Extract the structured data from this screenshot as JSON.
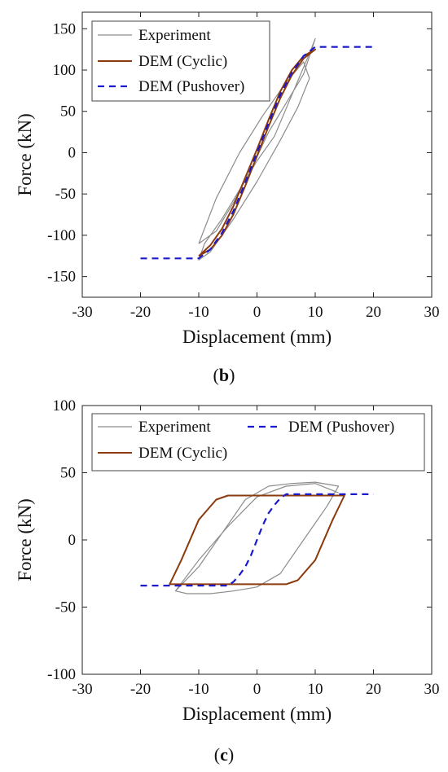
{
  "charts": [
    {
      "caption_letter": "b",
      "chart_data": {
        "type": "line",
        "xlabel": "Displacement (mm)",
        "ylabel": "Force (kN)",
        "xlim": [
          -30,
          30
        ],
        "ylim": [
          -175,
          170
        ],
        "xticks": [
          -30,
          -20,
          -10,
          0,
          10,
          20,
          30
        ],
        "yticks": [
          -150,
          -100,
          -50,
          0,
          50,
          100,
          150
        ],
        "legend_position": "top-left",
        "legend": [
          "Experiment",
          "DEM (Cyclic)",
          "DEM (Pushover)"
        ],
        "colors": {
          "Experiment": "#8c8c8c",
          "DEM (Cyclic)": "#8B3A0E",
          "DEM (Pushover)": "#1a1acc"
        },
        "series": [
          {
            "name": "DEM (Pushover)",
            "style": "dashed",
            "x": [
              -20,
              -10,
              -8,
              -6,
              -4,
              -2,
              0,
              2,
              4,
              6,
              8,
              10,
              20
            ],
            "y": [
              -128,
              -128,
              -117,
              -97,
              -70,
              -36,
              0,
              36,
              70,
              97,
              117,
              128,
              128
            ]
          },
          {
            "name": "DEM (Cyclic)",
            "style": "solid",
            "x": [
              -10,
              -8,
              -6,
              -4,
              -2,
              0,
              2,
              4,
              6,
              8,
              10,
              8,
              6,
              4,
              2,
              0,
              -2,
              -4,
              -6,
              -8,
              -10
            ],
            "y": [
              -125,
              -112,
              -92,
              -64,
              -30,
              4,
              40,
              74,
              100,
              117,
              125,
              114,
              94,
              66,
              32,
              -4,
              -40,
              -74,
              -100,
              -117,
              -125
            ]
          },
          {
            "name": "Experiment",
            "style": "solid",
            "x": [
              -10,
              -7,
              -4,
              -1,
              2,
              5,
              8,
              10,
              9,
              6,
              3,
              0,
              -3,
              -6,
              -9,
              -10,
              -8,
              -4,
              0,
              4,
              7,
              9,
              8,
              5,
              1,
              -3,
              -7,
              -10
            ],
            "y": [
              -110,
              -95,
              -60,
              -20,
              25,
              60,
              95,
              138,
              120,
              70,
              20,
              -10,
              -45,
              -80,
              -110,
              -130,
              -120,
              -80,
              -35,
              15,
              55,
              90,
              110,
              85,
              45,
              0,
              -55,
              -110
            ]
          }
        ]
      }
    },
    {
      "caption_letter": "c",
      "chart_data": {
        "type": "line",
        "xlabel": "Displacement (mm)",
        "ylabel": "Force (kN)",
        "xlim": [
          -30,
          30
        ],
        "ylim": [
          -100,
          100
        ],
        "xticks": [
          -30,
          -20,
          -10,
          0,
          10,
          20,
          30
        ],
        "yticks": [
          -100,
          -50,
          0,
          50,
          100
        ],
        "legend_position": "top",
        "legend": [
          "Experiment",
          "DEM (Pushover)",
          "DEM (Cyclic)"
        ],
        "colors": {
          "Experiment": "#8c8c8c",
          "DEM (Cyclic)": "#8B3A0E",
          "DEM (Pushover)": "#1a1acc"
        },
        "series": [
          {
            "name": "DEM (Pushover)",
            "style": "dashed",
            "x": [
              -20,
              -5,
              -4,
              -3,
              -2,
              -1,
              0,
              1,
              2,
              3,
              4,
              5,
              20
            ],
            "y": [
              -34,
              -34,
              -31,
              -26,
              -20,
              -11,
              0,
              11,
              20,
              26,
              31,
              34,
              34
            ]
          },
          {
            "name": "DEM (Cyclic)",
            "style": "solid",
            "x": [
              -15,
              -13,
              -10,
              -7,
              -5,
              -3,
              15,
              13,
              10,
              7,
              5,
              3,
              -15,
              -13,
              -10,
              -7,
              -5,
              -3,
              15
            ],
            "y": [
              -33,
              -15,
              15,
              30,
              33,
              33,
              33,
              15,
              -15,
              -30,
              -33,
              -33,
              -33,
              -15,
              15,
              30,
              33,
              33,
              33
            ]
          },
          {
            "name": "Experiment",
            "style": "solid",
            "x": [
              -14,
              -10,
              -6,
              -2,
              2,
              6,
              10,
              14,
              12,
              8,
              4,
              0,
              -4,
              -8,
              -12,
              -14,
              -10,
              -5,
              0,
              5,
              10,
              14
            ],
            "y": [
              -38,
              -20,
              5,
              30,
              40,
              42,
              43,
              40,
              25,
              0,
              -25,
              -35,
              -38,
              -40,
              -40,
              -38,
              -15,
              10,
              32,
              40,
              42,
              35
            ]
          }
        ]
      }
    }
  ]
}
